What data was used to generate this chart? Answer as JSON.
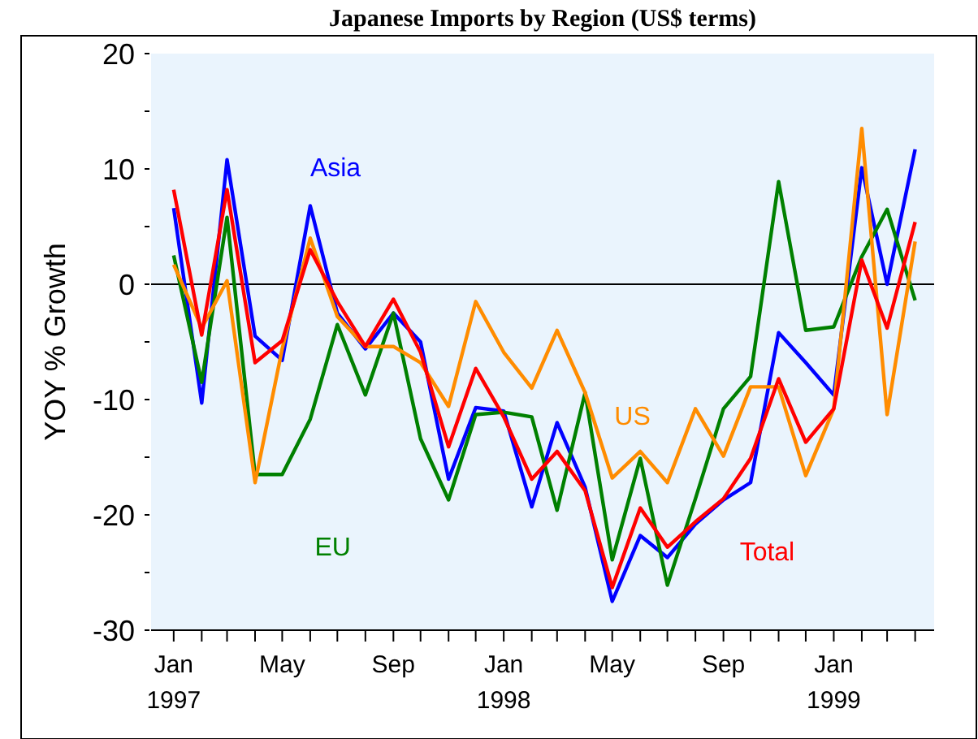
{
  "chart_data": {
    "type": "line",
    "title": "Japanese Imports by Region (US$ terms)",
    "ylabel": "YOY % Growth",
    "x": [
      "1997-01",
      "1997-02",
      "1997-03",
      "1997-04",
      "1997-05",
      "1997-06",
      "1997-07",
      "1997-08",
      "1997-09",
      "1997-10",
      "1997-11",
      "1997-12",
      "1998-01",
      "1998-02",
      "1998-03",
      "1998-04",
      "1998-05",
      "1998-06",
      "1998-07",
      "1998-08",
      "1998-09",
      "1998-10",
      "1998-11",
      "1998-12",
      "1999-01",
      "1999-02",
      "1999-03",
      "1999-04"
    ],
    "series": [
      {
        "name": "Asia",
        "color": "#0000ff",
        "values": [
          6.6,
          -10.3,
          10.8,
          -4.5,
          -6.6,
          6.8,
          -2.5,
          -5.6,
          -2.5,
          -5,
          -16.9,
          -10.7,
          -11,
          -19.3,
          -12,
          -17.6,
          -27.5,
          -21.8,
          -23.7,
          -20.8,
          -18.7,
          -17.2,
          -4.2,
          -6.8,
          -9.6,
          10.1,
          0,
          11.7
        ]
      },
      {
        "name": "EU",
        "color": "#008000",
        "values": [
          2.5,
          -8.5,
          5.8,
          -16.5,
          -16.5,
          -11.7,
          -3.5,
          -9.6,
          -2.5,
          -13.4,
          -18.7,
          -11.3,
          -11.1,
          -11.5,
          -19.6,
          -9.4,
          -23.9,
          -15.1,
          -26.1,
          -18.6,
          -10.8,
          -8,
          8.9,
          -4,
          -3.7,
          2.4,
          6.5,
          -1.4
        ]
      },
      {
        "name": "US",
        "color": "#ff8c00",
        "values": [
          1.7,
          -3.8,
          0.3,
          -17.2,
          -5.6,
          4,
          -2.8,
          -5.4,
          -5.4,
          -6.8,
          -10.6,
          -1.5,
          -5.9,
          -9,
          -4,
          -9.4,
          -16.8,
          -14.5,
          -17.2,
          -10.8,
          -14.9,
          -8.9,
          -8.9,
          -16.6,
          -10.8,
          13.5,
          -11.3,
          3.7
        ]
      },
      {
        "name": "Total",
        "color": "#ff0000",
        "values": [
          8.2,
          -4.4,
          8.2,
          -6.8,
          -4.9,
          3,
          -1.5,
          -5.4,
          -1.3,
          -5.9,
          -14.1,
          -7.3,
          -11.5,
          -16.9,
          -14.5,
          -17.9,
          -26.3,
          -19.4,
          -22.8,
          -20.6,
          -18.6,
          -15.1,
          -8.2,
          -13.7,
          -10.8,
          2.1,
          -3.8,
          5.4
        ]
      }
    ],
    "xlim": [
      "1996-12-07",
      "1999-04-22"
    ],
    "xticks": [
      {
        "value": "1997-01",
        "label": "Jan\n1997"
      },
      {
        "value": "1997-02",
        "label": null
      },
      {
        "value": "1997-03",
        "label": null
      },
      {
        "value": "1997-04",
        "label": null
      },
      {
        "value": "1997-05",
        "label": "May"
      },
      {
        "value": "1997-06",
        "label": null
      },
      {
        "value": "1997-07",
        "label": null
      },
      {
        "value": "1997-08",
        "label": null
      },
      {
        "value": "1997-09",
        "label": "Sep"
      },
      {
        "value": "1997-10",
        "label": null
      },
      {
        "value": "1997-11",
        "label": null
      },
      {
        "value": "1997-12",
        "label": null
      },
      {
        "value": "1998-01",
        "label": "Jan\n1998"
      },
      {
        "value": "1998-02",
        "label": null
      },
      {
        "value": "1998-03",
        "label": null
      },
      {
        "value": "1998-04",
        "label": null
      },
      {
        "value": "1998-05",
        "label": "May"
      },
      {
        "value": "1998-06",
        "label": null
      },
      {
        "value": "1998-07",
        "label": null
      },
      {
        "value": "1998-08",
        "label": null
      },
      {
        "value": "1998-09",
        "label": "Sep"
      },
      {
        "value": "1998-10",
        "label": null
      },
      {
        "value": "1998-11",
        "label": null
      },
      {
        "value": "1998-12",
        "label": null
      },
      {
        "value": "1999-01",
        "label": "Jan\n1999"
      },
      {
        "value": "1999-02",
        "label": null
      },
      {
        "value": "1999-03",
        "label": null
      },
      {
        "value": "1999-04",
        "label": null
      }
    ],
    "ylim": [
      -30,
      20
    ],
    "yticks": [
      -30,
      {
        "value": -25,
        "label": null
      },
      -20,
      {
        "value": -15,
        "label": null
      },
      -10,
      {
        "value": -5,
        "label": null
      },
      0,
      {
        "value": 5,
        "label": null
      },
      10,
      {
        "value": 15,
        "label": null
      },
      20
    ],
    "ref_lines": [
      {
        "axis": "y",
        "value": 0,
        "color": "#000000"
      }
    ],
    "grid": false,
    "marker": "none",
    "line_style": "solid"
  }
}
